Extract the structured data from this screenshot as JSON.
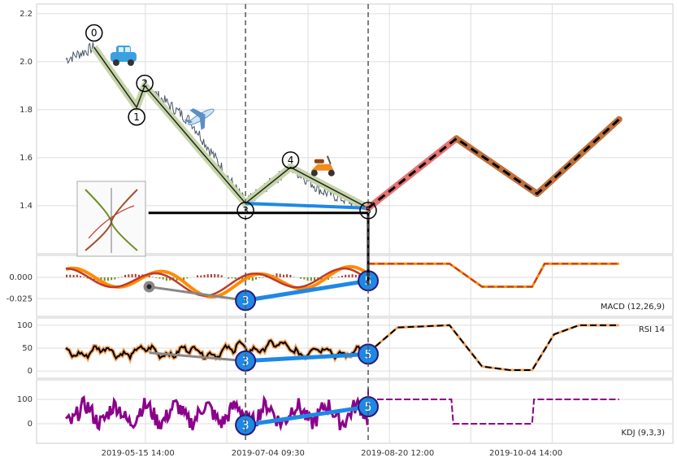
{
  "colors": {
    "price": "#4a5568",
    "wave_band": "#c5d5a8",
    "wave_line": "#222222",
    "projection_red": "#e57373",
    "projection_brown": "#c0703c",
    "blue_line": "#1e88e5",
    "macd_orange": "#ff8c00",
    "macd_red": "#c0392b",
    "macd_bar_pos": "#b03a2e",
    "macd_bar_neg": "#6b8e23",
    "rsi_orange": "#f4a460",
    "kdj_purple": "#8b008b",
    "grid": "#dddddd"
  },
  "chart_data": [
    {
      "type": "line",
      "panel": "price",
      "xlabels": [
        "2019-05-15 14:00",
        "2019-07-04 09:30",
        "2019-08-20 12:00",
        "2019-10-04 14:00"
      ],
      "xrange": [
        0,
        100
      ],
      "ylim": [
        1.22,
        2.22
      ],
      "yticks": [
        1.4,
        1.6,
        1.8,
        2.0,
        2.2
      ],
      "ytick_labels": [
        "1.4",
        "1.6",
        "1.8",
        "2.0",
        "2.2"
      ],
      "price_path": [
        [
          2.02,
          1.98
        ],
        [
          2.06,
          1.92
        ],
        [
          1.95,
          1.86
        ],
        [
          1.88,
          1.82
        ],
        [
          1.86,
          1.78
        ],
        [
          1.75,
          1.7
        ],
        [
          1.65,
          1.58
        ],
        [
          1.55,
          1.48
        ],
        [
          1.45,
          1.42
        ],
        [
          1.43,
          1.48
        ],
        [
          1.5,
          1.52
        ],
        [
          1.52,
          1.55
        ],
        [
          1.52,
          1.48
        ],
        [
          1.48,
          1.46
        ],
        [
          1.45,
          1.44
        ],
        [
          1.44,
          1.42
        ],
        [
          1.41,
          1.4
        ]
      ],
      "waves": [
        {
          "label": "0",
          "x": 7.5,
          "y": 2.06
        },
        {
          "label": "1",
          "x": 14.3,
          "y": 1.81
        },
        {
          "label": "2",
          "x": 15.6,
          "y": 1.9
        },
        {
          "label": "3",
          "x": 31.7,
          "y": 1.41
        },
        {
          "label": "4",
          "x": 38.9,
          "y": 1.56
        },
        {
          "label": "5",
          "x": 51.3,
          "y": 1.39
        }
      ],
      "wave_label_pos": [
        {
          "label": "0",
          "x": 7.5,
          "y": 2.12
        },
        {
          "label": "1",
          "x": 14.3,
          "y": 1.77
        },
        {
          "label": "2",
          "x": 15.6,
          "y": 1.91
        },
        {
          "label": "3",
          "x": 31.7,
          "y": 1.38
        },
        {
          "label": "4",
          "x": 38.9,
          "y": 1.59
        },
        {
          "label": "5",
          "x": 51.3,
          "y": 1.38
        }
      ],
      "projection_red": [
        [
          51.3,
          1.39
        ],
        [
          65.4,
          1.68
        ]
      ],
      "projection_brown": [
        [
          65.4,
          1.68
        ],
        [
          78.3,
          1.45
        ],
        [
          91.4,
          1.76
        ]
      ],
      "blue_segment": [
        [
          31.7,
          1.41
        ],
        [
          51.3,
          1.39
        ]
      ],
      "support_line": {
        "x_start": 16.2,
        "x_end": 51.3,
        "y": 1.37
      },
      "vlines_dashed": [
        31.7,
        51.3
      ],
      "markers": [
        {
          "icon": "car-icon",
          "x": 12.2,
          "y": 2.02
        },
        {
          "icon": "airplane-icon",
          "x": 24.6,
          "y": 1.77
        },
        {
          "icon": "scooter-icon",
          "x": 44.0,
          "y": 1.56
        },
        {
          "icon": "thumbnail-image-icon",
          "x": 10.7,
          "y": 1.38
        }
      ]
    },
    {
      "type": "line",
      "panel": "macd",
      "label": "MACD (12,26,9)",
      "ylim": [
        -0.04,
        0.02
      ],
      "yticks": [
        0.0,
        -0.025
      ],
      "ytick_labels": [
        "0.000",
        "-0.025"
      ],
      "blue_segment": [
        [
          31.7,
          -0.027
        ],
        [
          51.3,
          -0.004
        ]
      ],
      "gray_segment": [
        [
          16.3,
          -0.011
        ],
        [
          31.7,
          -0.027
        ]
      ],
      "gray_point": [
        16.3,
        -0.011
      ],
      "proj_levels": [
        0.016,
        0.016,
        -0.011,
        -0.011,
        0.016,
        0.016
      ],
      "proj_x": [
        51.3,
        64.3,
        69.5,
        77.5,
        79.5,
        91.4
      ],
      "blue_label": {
        "label3": "3",
        "label5": "5"
      }
    },
    {
      "type": "line",
      "panel": "rsi",
      "label": "RSI 14",
      "ylim": [
        -5,
        105
      ],
      "yticks": [
        0,
        50,
        100
      ],
      "ytick_labels": [
        "0",
        "50",
        "100"
      ],
      "blue_segment": [
        [
          31.7,
          22
        ],
        [
          51.3,
          37
        ]
      ],
      "gray_segment": [
        [
          16.3,
          40
        ],
        [
          31.7,
          22
        ]
      ],
      "proj_path": [
        [
          51.3,
          40
        ],
        [
          56.0,
          95
        ],
        [
          64.3,
          100
        ],
        [
          69.5,
          10
        ],
        [
          74.0,
          2
        ],
        [
          77.5,
          2
        ],
        [
          81.0,
          80
        ],
        [
          85.0,
          100
        ],
        [
          91.4,
          100
        ]
      ],
      "blue_label": {
        "label3": "3",
        "label5": "5"
      }
    },
    {
      "type": "line",
      "panel": "kdj",
      "label": "KDJ (9,3,3)",
      "ylim": [
        -60,
        160
      ],
      "yticks": [
        0,
        100
      ],
      "ytick_labels": [
        "0",
        "100"
      ],
      "blue_segment": [
        [
          31.7,
          -5
        ],
        [
          51.3,
          70
        ]
      ],
      "proj_levels_x": [
        51.3,
        64.6,
        64.9,
        77.5,
        77.8,
        91.4
      ],
      "proj_levels_y": [
        100,
        100,
        0,
        0,
        100,
        100
      ],
      "blue_label": {
        "label3": "3",
        "label5": "5"
      }
    }
  ]
}
